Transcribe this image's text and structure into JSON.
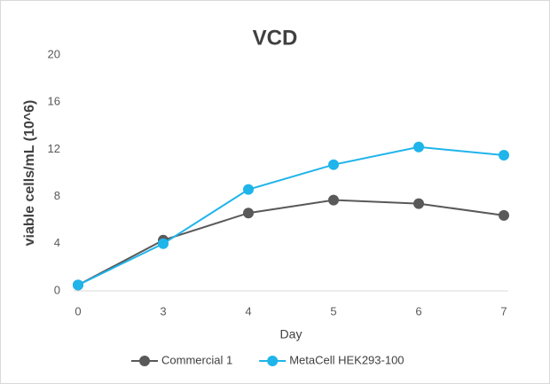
{
  "chart_data": {
    "type": "line",
    "title": "VCD",
    "x_label": "Day",
    "y_label": "viable cells/mL (10^6)",
    "categories": [
      "0",
      "3",
      "4",
      "5",
      "6",
      "7"
    ],
    "series": [
      {
        "name": "Commercial 1",
        "color": "#595959",
        "values": [
          0.5,
          4.3,
          6.6,
          7.7,
          7.4,
          6.4
        ]
      },
      {
        "name": "MetaCell HEK293-100",
        "color": "#1fb4ea",
        "values": [
          0.5,
          4.0,
          8.6,
          10.7,
          12.2,
          11.5
        ]
      }
    ],
    "ylim": [
      0,
      20
    ],
    "yticks": [
      0,
      4,
      8,
      12,
      16,
      20
    ],
    "grid": false,
    "legend": "bottom"
  }
}
